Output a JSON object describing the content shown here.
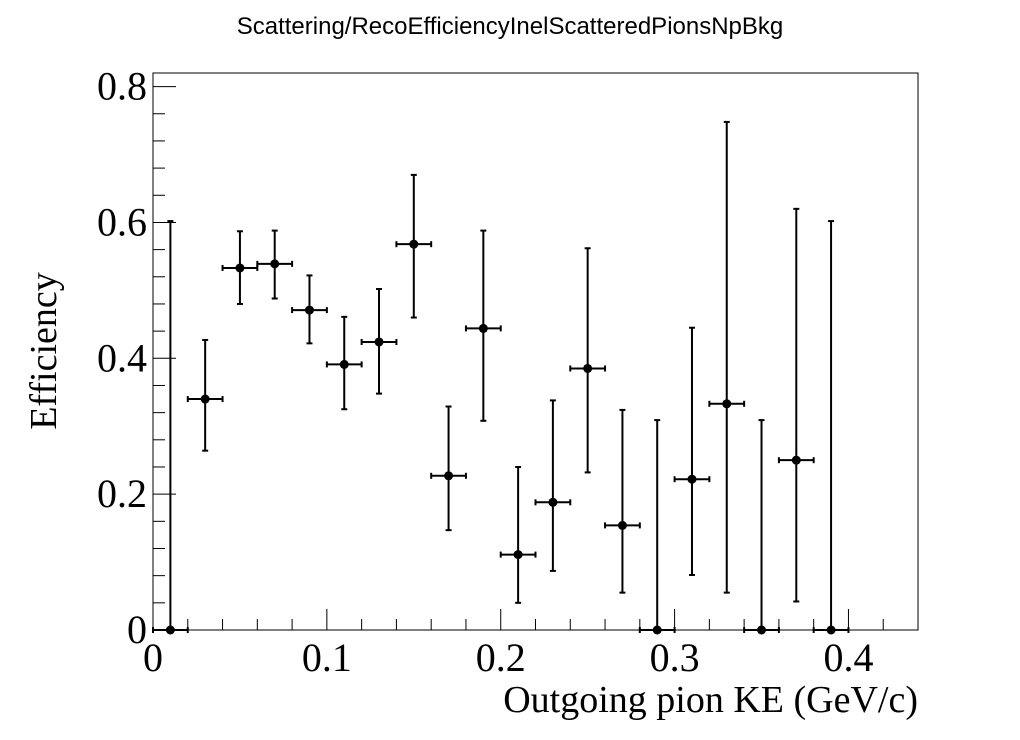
{
  "chart_data": {
    "type": "scatter",
    "title": "Scattering/RecoEfficiencyInelScatteredPionsNpBkg",
    "xlabel": "Outgoing pion KE (GeV/c)",
    "ylabel": "Efficiency",
    "xlim": [
      0,
      0.44
    ],
    "ylim": [
      0,
      0.82
    ],
    "x_ticks": [
      0,
      0.1,
      0.2,
      0.3,
      0.4
    ],
    "x_tick_labels": [
      "0",
      "0.1",
      "0.2",
      "0.3",
      "0.4"
    ],
    "y_ticks": [
      0,
      0.2,
      0.4,
      0.6,
      0.8
    ],
    "y_tick_labels": [
      "0",
      "0.2",
      "0.4",
      "0.6",
      "0.8"
    ],
    "grid": false,
    "legend": "none",
    "bin_half_width": 0.01,
    "series": [
      {
        "x": [
          0.01,
          0.03,
          0.05,
          0.07,
          0.09,
          0.11,
          0.13,
          0.15,
          0.17,
          0.19,
          0.21,
          0.23,
          0.25,
          0.27,
          0.29,
          0.31,
          0.33,
          0.35,
          0.37,
          0.39
        ],
        "y": [
          0.0,
          0.34,
          0.533,
          0.539,
          0.471,
          0.391,
          0.424,
          0.568,
          0.227,
          0.444,
          0.111,
          0.188,
          0.385,
          0.154,
          0.0,
          0.222,
          0.333,
          0.0,
          0.25,
          0.0
        ],
        "err_low": [
          0.0,
          0.076,
          0.053,
          0.051,
          0.049,
          0.066,
          0.076,
          0.108,
          0.08,
          0.136,
          0.071,
          0.101,
          0.153,
          0.099,
          0.0,
          0.141,
          0.278,
          0.0,
          0.208,
          0.0
        ],
        "err_high": [
          0.602,
          0.087,
          0.054,
          0.049,
          0.051,
          0.07,
          0.078,
          0.102,
          0.102,
          0.144,
          0.129,
          0.15,
          0.177,
          0.17,
          0.309,
          0.223,
          0.415,
          0.309,
          0.37,
          0.602
        ]
      }
    ]
  }
}
